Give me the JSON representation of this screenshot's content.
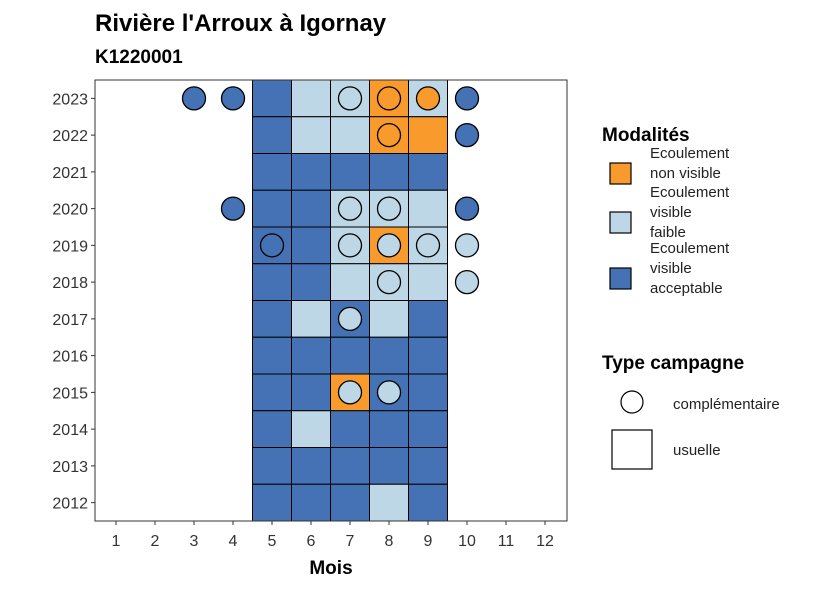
{
  "colors": {
    "non_visible": "#F89A2C",
    "faible": "#BDD7E7",
    "acceptable": "#4472B4",
    "outline": "#000000"
  },
  "chart_data": {
    "type": "heatmap",
    "title": "Rivière l'Arroux à Igornay",
    "subtitle": "K1220001",
    "xlabel": "Mois",
    "ylabel": "",
    "x_ticks": [
      "1",
      "2",
      "3",
      "4",
      "5",
      "6",
      "7",
      "8",
      "9",
      "10",
      "11",
      "12"
    ],
    "y_ticks": [
      "2012",
      "2013",
      "2014",
      "2015",
      "2016",
      "2017",
      "2018",
      "2019",
      "2020",
      "2021",
      "2022",
      "2023"
    ],
    "legend_modalites": {
      "title": "Modalités",
      "items": [
        {
          "key": "non_visible",
          "label_lines": [
            "Ecoulement",
            "non visible"
          ]
        },
        {
          "key": "faible",
          "label_lines": [
            "Ecoulement",
            "visible",
            "faible"
          ]
        },
        {
          "key": "acceptable",
          "label_lines": [
            "Ecoulement",
            "visible",
            "acceptable"
          ]
        }
      ]
    },
    "legend_type": {
      "title": "Type campagne",
      "items": [
        {
          "shape": "circle",
          "label": "complémentaire"
        },
        {
          "shape": "square",
          "label": "usuelle"
        }
      ]
    },
    "usuelle": [
      {
        "year": 2023,
        "month": 5,
        "value": "acceptable"
      },
      {
        "year": 2023,
        "month": 6,
        "value": "faible"
      },
      {
        "year": 2023,
        "month": 7,
        "value": "faible"
      },
      {
        "year": 2023,
        "month": 8,
        "value": "non_visible"
      },
      {
        "year": 2023,
        "month": 9,
        "value": "faible"
      },
      {
        "year": 2022,
        "month": 5,
        "value": "acceptable"
      },
      {
        "year": 2022,
        "month": 6,
        "value": "faible"
      },
      {
        "year": 2022,
        "month": 7,
        "value": "faible"
      },
      {
        "year": 2022,
        "month": 8,
        "value": "non_visible"
      },
      {
        "year": 2022,
        "month": 9,
        "value": "non_visible"
      },
      {
        "year": 2021,
        "month": 5,
        "value": "acceptable"
      },
      {
        "year": 2021,
        "month": 6,
        "value": "acceptable"
      },
      {
        "year": 2021,
        "month": 7,
        "value": "acceptable"
      },
      {
        "year": 2021,
        "month": 8,
        "value": "acceptable"
      },
      {
        "year": 2021,
        "month": 9,
        "value": "acceptable"
      },
      {
        "year": 2020,
        "month": 5,
        "value": "acceptable"
      },
      {
        "year": 2020,
        "month": 6,
        "value": "acceptable"
      },
      {
        "year": 2020,
        "month": 7,
        "value": "faible"
      },
      {
        "year": 2020,
        "month": 8,
        "value": "faible"
      },
      {
        "year": 2020,
        "month": 9,
        "value": "faible"
      },
      {
        "year": 2019,
        "month": 5,
        "value": "acceptable"
      },
      {
        "year": 2019,
        "month": 6,
        "value": "acceptable"
      },
      {
        "year": 2019,
        "month": 7,
        "value": "faible"
      },
      {
        "year": 2019,
        "month": 8,
        "value": "non_visible"
      },
      {
        "year": 2019,
        "month": 9,
        "value": "faible"
      },
      {
        "year": 2018,
        "month": 5,
        "value": "acceptable"
      },
      {
        "year": 2018,
        "month": 6,
        "value": "acceptable"
      },
      {
        "year": 2018,
        "month": 7,
        "value": "faible"
      },
      {
        "year": 2018,
        "month": 8,
        "value": "faible"
      },
      {
        "year": 2018,
        "month": 9,
        "value": "faible"
      },
      {
        "year": 2017,
        "month": 5,
        "value": "acceptable"
      },
      {
        "year": 2017,
        "month": 6,
        "value": "faible"
      },
      {
        "year": 2017,
        "month": 7,
        "value": "acceptable"
      },
      {
        "year": 2017,
        "month": 8,
        "value": "faible"
      },
      {
        "year": 2017,
        "month": 9,
        "value": "acceptable"
      },
      {
        "year": 2016,
        "month": 5,
        "value": "acceptable"
      },
      {
        "year": 2016,
        "month": 6,
        "value": "acceptable"
      },
      {
        "year": 2016,
        "month": 7,
        "value": "acceptable"
      },
      {
        "year": 2016,
        "month": 8,
        "value": "acceptable"
      },
      {
        "year": 2016,
        "month": 9,
        "value": "acceptable"
      },
      {
        "year": 2015,
        "month": 5,
        "value": "acceptable"
      },
      {
        "year": 2015,
        "month": 6,
        "value": "acceptable"
      },
      {
        "year": 2015,
        "month": 7,
        "value": "non_visible"
      },
      {
        "year": 2015,
        "month": 8,
        "value": "acceptable"
      },
      {
        "year": 2015,
        "month": 9,
        "value": "acceptable"
      },
      {
        "year": 2014,
        "month": 5,
        "value": "acceptable"
      },
      {
        "year": 2014,
        "month": 6,
        "value": "faible"
      },
      {
        "year": 2014,
        "month": 7,
        "value": "acceptable"
      },
      {
        "year": 2014,
        "month": 8,
        "value": "acceptable"
      },
      {
        "year": 2014,
        "month": 9,
        "value": "acceptable"
      },
      {
        "year": 2013,
        "month": 5,
        "value": "acceptable"
      },
      {
        "year": 2013,
        "month": 6,
        "value": "acceptable"
      },
      {
        "year": 2013,
        "month": 7,
        "value": "acceptable"
      },
      {
        "year": 2013,
        "month": 8,
        "value": "acceptable"
      },
      {
        "year": 2013,
        "month": 9,
        "value": "acceptable"
      },
      {
        "year": 2012,
        "month": 5,
        "value": "acceptable"
      },
      {
        "year": 2012,
        "month": 6,
        "value": "acceptable"
      },
      {
        "year": 2012,
        "month": 7,
        "value": "acceptable"
      },
      {
        "year": 2012,
        "month": 8,
        "value": "faible"
      },
      {
        "year": 2012,
        "month": 9,
        "value": "acceptable"
      }
    ],
    "complementaire": [
      {
        "year": 2023,
        "month": 3,
        "value": "acceptable"
      },
      {
        "year": 2023,
        "month": 4,
        "value": "acceptable"
      },
      {
        "year": 2023,
        "month": 7,
        "value": "faible"
      },
      {
        "year": 2023,
        "month": 8,
        "value": "non_visible"
      },
      {
        "year": 2023,
        "month": 9,
        "value": "non_visible"
      },
      {
        "year": 2023,
        "month": 10,
        "value": "acceptable"
      },
      {
        "year": 2022,
        "month": 8,
        "value": "non_visible"
      },
      {
        "year": 2022,
        "month": 10,
        "value": "acceptable"
      },
      {
        "year": 2020,
        "month": 4,
        "value": "acceptable"
      },
      {
        "year": 2020,
        "month": 7,
        "value": "faible"
      },
      {
        "year": 2020,
        "month": 8,
        "value": "faible"
      },
      {
        "year": 2020,
        "month": 10,
        "value": "acceptable"
      },
      {
        "year": 2019,
        "month": 5,
        "value": "acceptable"
      },
      {
        "year": 2019,
        "month": 7,
        "value": "faible"
      },
      {
        "year": 2019,
        "month": 8,
        "value": "faible"
      },
      {
        "year": 2019,
        "month": 9,
        "value": "faible"
      },
      {
        "year": 2019,
        "month": 10,
        "value": "faible"
      },
      {
        "year": 2018,
        "month": 8,
        "value": "faible"
      },
      {
        "year": 2018,
        "month": 10,
        "value": "faible"
      },
      {
        "year": 2017,
        "month": 7,
        "value": "faible"
      },
      {
        "year": 2015,
        "month": 7,
        "value": "faible"
      },
      {
        "year": 2015,
        "month": 8,
        "value": "faible"
      }
    ]
  }
}
